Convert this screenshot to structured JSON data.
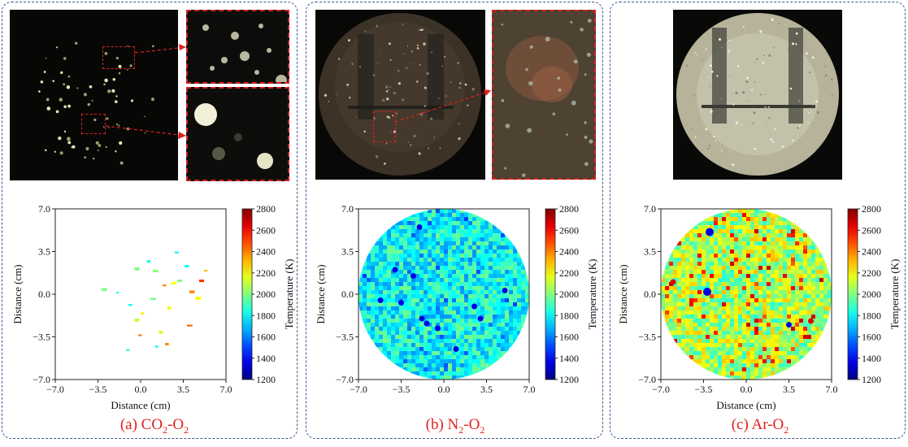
{
  "colors": {
    "caption": "#e0201c",
    "frame": "#3b5a8c",
    "roi": "#d42020"
  },
  "colormap": [
    "#00007f",
    "#0000ff",
    "#0080ff",
    "#00e0ff",
    "#40ff c0",
    "#c0ff40",
    "#ffe000",
    "#ff8000",
    "#ff0000",
    "#7f0000"
  ],
  "panels": [
    {
      "id": "a",
      "caption_prefix": "(a) CO",
      "caption_sub1": "2",
      "caption_mid": "-O",
      "caption_sub2": "2",
      "photo": "dark-sparse-particles",
      "zooms": 2,
      "map_style": "sparse",
      "chart_data": {
        "type": "heatmap",
        "title": "(a) CO2-O2",
        "xlabel": "Distance (cm)",
        "ylabel": "Distance (cm)",
        "xlim": [
          -7.0,
          7.0
        ],
        "ylim": [
          -7.0,
          7.0
        ],
        "xticks": [
          "−7.0",
          "−3.5",
          "0.0",
          "3.5",
          "7.0"
        ],
        "yticks": [
          "7.0",
          "3.5",
          "0.0",
          "−3.5",
          "−7.0"
        ],
        "colorbar": {
          "label": "Temperature (K)",
          "min": 1200,
          "max": 2800,
          "ticks": [
            "2800",
            "2600",
            "2400",
            "2200",
            "2000",
            "1800",
            "1600",
            "1400",
            "1200"
          ]
        }
      }
    },
    {
      "id": "b",
      "caption_prefix": "(b) N",
      "caption_sub1": "2",
      "caption_mid": "-O",
      "caption_sub2": "2",
      "photo": "brown-with-probe",
      "zooms": 1,
      "map_style": "blue",
      "chart_data": {
        "type": "heatmap",
        "title": "(b) N2-O2",
        "xlabel": "",
        "ylabel": "Distance (cm)",
        "xlim": [
          -7.0,
          7.0
        ],
        "ylim": [
          -7.0,
          7.0
        ],
        "xticks": [
          "−7.0",
          "−3.5",
          "0.0",
          "3.5",
          "7.0"
        ],
        "yticks": [
          "7.0",
          "3.5",
          "0.0",
          "−3.5",
          "−7.0"
        ],
        "colorbar": {
          "label": "Temperature (K)",
          "min": 1200,
          "max": 2800,
          "ticks": [
            "2800",
            "2600",
            "2400",
            "2200",
            "2000",
            "1800",
            "1600",
            "1400",
            "1200"
          ]
        }
      }
    },
    {
      "id": "c",
      "caption_prefix": "(c) Ar-O",
      "caption_sub1": "",
      "caption_mid": "",
      "caption_sub2": "2",
      "photo": "bright-with-probe",
      "zooms": 0,
      "map_style": "warm",
      "chart_data": {
        "type": "heatmap",
        "title": "(c) Ar-O2",
        "xlabel": "Distance (cm)",
        "ylabel": "Distance (cm)",
        "xlim": [
          -7.0,
          7.0
        ],
        "ylim": [
          -7.0,
          7.0
        ],
        "xticks": [
          "−7.0",
          "−3.5",
          "0.0",
          "3.5",
          "7.0"
        ],
        "yticks": [
          "7.0",
          "3.5",
          "0.0",
          "−3.5",
          "−7.0"
        ],
        "colorbar": {
          "label": "Temperature (K)",
          "min": 1200,
          "max": 2800,
          "ticks": [
            "2800",
            "2600",
            "2400",
            "2200",
            "2000",
            "1800",
            "1600",
            "1400",
            "1200"
          ]
        }
      }
    }
  ]
}
